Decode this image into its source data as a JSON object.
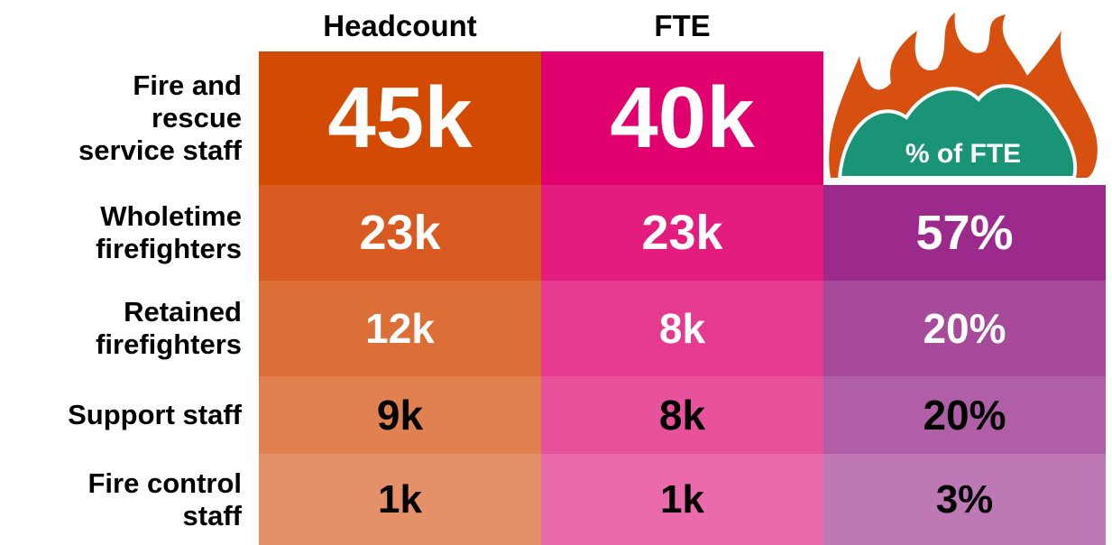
{
  "header": {
    "columns": [
      "Headcount",
      "FTE"
    ],
    "percent_label": "% of FTE"
  },
  "rows": [
    {
      "label": [
        "Fire and",
        "rescue",
        "service staff"
      ],
      "cells": [
        "45k",
        "40k"
      ]
    },
    {
      "label": [
        "Wholetime",
        "firefighters"
      ],
      "cells": [
        "23k",
        "23k",
        "57%"
      ]
    },
    {
      "label": [
        "Retained",
        "firefighters"
      ],
      "cells": [
        "12k",
        "8k",
        "20%"
      ]
    },
    {
      "label": [
        "Support staff"
      ],
      "cells": [
        "9k",
        "8k",
        "20%"
      ]
    },
    {
      "label": [
        "Fire control",
        "staff"
      ],
      "cells": [
        "1k",
        "1k",
        "3%"
      ]
    }
  ]
}
